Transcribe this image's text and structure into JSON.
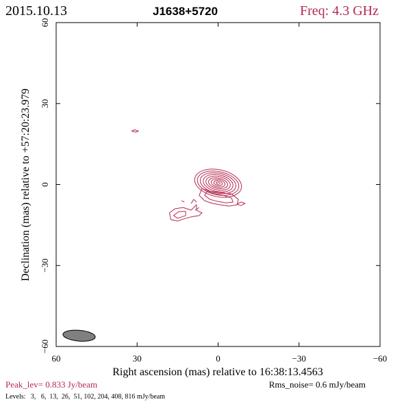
{
  "header": {
    "date": "2015.10.13",
    "source": "J1638+5720",
    "freq": "Freq: 4.3 GHz"
  },
  "footer": {
    "peak": "Peak_lev=  0.833 Jy/beam",
    "rms": "Rms_noise=  0.6 mJy/beam",
    "levels": "Levels:   3,   6,  13,  26,  51, 102, 204, 408, 816 mJy/beam"
  },
  "colors": {
    "contour": "#b5284f",
    "beam": "#808080",
    "text": "#000000"
  },
  "chart_data": {
    "type": "contour",
    "title": "J1638+5720",
    "xlabel": "Right ascension (mas) relative to 16:38:13.4563",
    "ylabel": "Declination (mas) relative to +57:20:23.979",
    "xlim": [
      60,
      -60
    ],
    "ylim": [
      -60,
      60
    ],
    "xticks": [
      60,
      30,
      0,
      -30,
      -60
    ],
    "yticks": [
      -60,
      -30,
      0,
      30,
      60
    ],
    "xtick_labels": [
      "60",
      "30",
      "0",
      "−30",
      "−60"
    ],
    "ytick_labels": [
      "−60",
      "−30",
      "0",
      "30",
      "60"
    ],
    "grid": false,
    "beam": {
      "x": 51.5,
      "y": -56.0,
      "major": 6.0,
      "minor": 2.0,
      "pa_deg": -85
    },
    "contour_levels_mJy": [
      3,
      6,
      13,
      26,
      51,
      102,
      204,
      408,
      816
    ],
    "core": {
      "x": 0,
      "y": 0.5,
      "rings": [
        {
          "a": 0.7,
          "b": 0.4
        },
        {
          "a": 1.6,
          "b": 0.9
        },
        {
          "a": 2.6,
          "b": 1.4
        },
        {
          "a": 3.6,
          "b": 1.9
        },
        {
          "a": 4.6,
          "b": 2.5
        },
        {
          "a": 5.6,
          "b": 3.1
        },
        {
          "a": 6.7,
          "b": 3.7
        },
        {
          "a": 7.8,
          "b": 4.3
        },
        {
          "a": 8.8,
          "b": 5.0
        }
      ],
      "angle_deg": -12
    },
    "jet_contours": [
      {
        "pts": [
          [
            6,
            -1.5
          ],
          [
            3,
            -2.5
          ],
          [
            -1,
            -3
          ],
          [
            -5,
            -3.5
          ],
          [
            -7.5,
            -5.5
          ],
          [
            -7,
            -7.5
          ],
          [
            -4,
            -8
          ],
          [
            -1,
            -7.5
          ],
          [
            2,
            -7
          ],
          [
            5,
            -6
          ],
          [
            7,
            -4
          ]
        ]
      },
      {
        "pts": [
          [
            4,
            -2.5
          ],
          [
            1,
            -3.5
          ],
          [
            -2,
            -4
          ],
          [
            -5,
            -5
          ],
          [
            -5.5,
            -6.5
          ],
          [
            -3,
            -6.8
          ],
          [
            0,
            -6.3
          ],
          [
            3,
            -5.5
          ],
          [
            5,
            -4
          ]
        ]
      },
      {
        "pts": [
          [
            8,
            -7.5
          ],
          [
            10,
            -9.5
          ],
          [
            13,
            -8.5
          ],
          [
            16,
            -9
          ],
          [
            18,
            -10.5
          ],
          [
            17.5,
            -13
          ],
          [
            15,
            -13.5
          ],
          [
            12,
            -12.5
          ],
          [
            10,
            -12
          ],
          [
            7,
            -11.5
          ],
          [
            6,
            -10.5
          ],
          [
            8,
            -9.5
          ]
        ]
      },
      {
        "pts": [
          [
            12,
            -10
          ],
          [
            14.5,
            -10
          ],
          [
            16.5,
            -11.5
          ],
          [
            15,
            -12.5
          ],
          [
            12,
            -11.5
          ]
        ]
      },
      {
        "pts": [
          [
            8,
            -6.5
          ],
          [
            9,
            -5.5
          ],
          [
            10,
            -7
          ]
        ]
      },
      {
        "pts": [
          [
            7,
            -8.5
          ],
          [
            8.5,
            -9.5
          ]
        ]
      },
      {
        "pts": [
          [
            12.5,
            -6.5
          ],
          [
            13.5,
            -6
          ]
        ]
      },
      {
        "pts": [
          [
            -8.5,
            -6.5
          ],
          [
            -10,
            -7
          ],
          [
            -8.5,
            -7.8
          ],
          [
            -7,
            -7.3
          ]
        ]
      },
      {
        "pts": [
          [
            29.5,
            19.8
          ],
          [
            31,
            20.3
          ],
          [
            32,
            19.8
          ],
          [
            30.5,
            19.4
          ]
        ]
      }
    ]
  }
}
